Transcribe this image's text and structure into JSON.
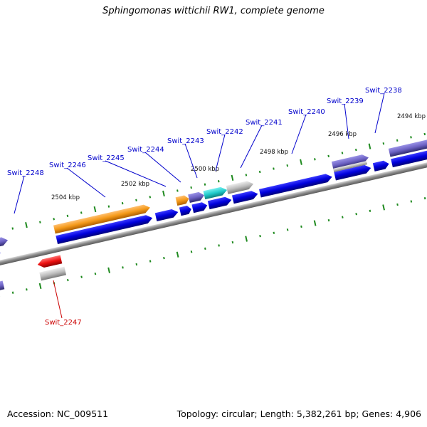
{
  "title": "Sphingomonas wittichii RW1, complete genome",
  "footer": {
    "accession": "Accession: NC_009511",
    "summary": "Topology: circular; Length: 5,382,261 bp; Genes: 4,906"
  },
  "scale_labels": [
    "2494 kbp",
    "2496 kbp",
    "2498 kbp",
    "2500 kbp",
    "2502 kbp",
    "2504 kbp"
  ],
  "gene_labels": [
    "Swit_2238",
    "Swit_2239",
    "Swit_2240",
    "Swit_2241",
    "Swit_2242",
    "Swit_2243",
    "Swit_2244",
    "Swit_2245",
    "Swit_2246",
    "Swit_2247",
    "Swit_2248"
  ],
  "colors": {
    "cds": "#0000dd",
    "gene_purple": "#6d62c4",
    "orange": "#f59a1a",
    "cyan": "#22cccc",
    "gray": "#b8b8b8",
    "red": "#ee1111",
    "tick": "#1f8a1f",
    "label_blue": "#0000cc",
    "label_red": "#cc0000"
  }
}
